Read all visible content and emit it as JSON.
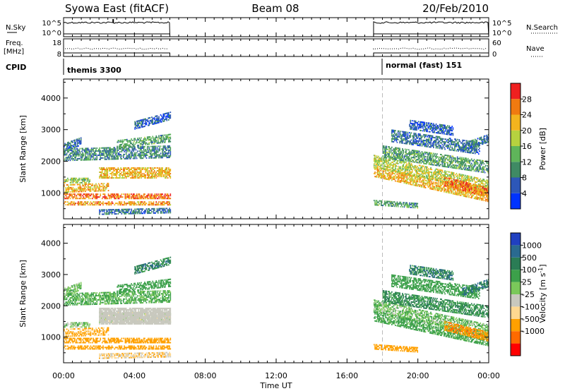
{
  "header": {
    "station": "Syowa East (fitACF)",
    "beam": "Beam 08",
    "date": "20/Feb/2010"
  },
  "colors": {
    "power_scale": [
      "#0033ff",
      "#2d57b8",
      "#3f8a64",
      "#5fb55a",
      "#b6d23f",
      "#f3b41e",
      "#f07a10",
      "#ef2020"
    ],
    "velocity_scale": [
      "#ff0000",
      "#ff6a00",
      "#ffa000",
      "#ffd890",
      "#c8c8be",
      "#7ac85a",
      "#3ca04a",
      "#2a7c55",
      "#2a6a90",
      "#2040c0"
    ]
  },
  "chart_data": [
    {
      "type": "line",
      "name_panel": "N.Sky / N.Search",
      "left_label": "N.Sky",
      "right_label": "N.Search",
      "left_ticks": [
        "10^5",
        "10^0"
      ],
      "right_ticks": [
        "10^5",
        "10^0"
      ],
      "segments": [
        [
          "00:00",
          "06:00"
        ],
        [
          "17:30",
          "24:00"
        ]
      ]
    },
    {
      "type": "line",
      "left_label_line1": "Freq.",
      "left_label_line2": "[MHz]",
      "right_label": "Nave",
      "left_ticks": [
        "18",
        "8"
      ],
      "right_ticks": [
        "60",
        "0"
      ],
      "freq_mhz": 10,
      "nave_approx": 30,
      "segments": [
        [
          "00:00",
          "06:00"
        ],
        [
          "17:30",
          "24:00"
        ]
      ]
    },
    {
      "type": "table",
      "label": "CPID",
      "modes": [
        {
          "name": "themis 3300",
          "start": "00:00",
          "end": "06:00"
        },
        {
          "name": "normal (fast) 151",
          "start": "17:30",
          "end": "24:00"
        }
      ]
    },
    {
      "type": "heatmap",
      "ylabel": "Slant Range [km]",
      "ylim": [
        180,
        4600
      ],
      "yticks": [
        1000,
        2000,
        3000,
        4000
      ],
      "colorbar_label": "Power [dB]",
      "colorbar_ticks": [
        4,
        8,
        12,
        16,
        20,
        24,
        28
      ],
      "clim": [
        0,
        32
      ],
      "data_windows": [
        [
          "00:00",
          "06:00"
        ],
        [
          "17:30",
          "24:00"
        ]
      ]
    },
    {
      "type": "heatmap",
      "ylabel": "Slant Range [km]",
      "ylim": [
        180,
        4600
      ],
      "yticks": [
        1000,
        2000,
        3000,
        4000
      ],
      "colorbar_label": "Velocity",
      "colorbar_unit": "[m s",
      "colorbar_unit_sup": "-1",
      "colorbar_unit_close": "]",
      "colorbar_ticks": [
        1000,
        500,
        100,
        25,
        -25,
        -100,
        -500,
        -1000
      ],
      "data_windows": [
        [
          "00:00",
          "06:00"
        ],
        [
          "17:30",
          "24:00"
        ]
      ]
    }
  ],
  "x_axis": {
    "label": "Time UT",
    "ticks": [
      "00:00",
      "04:00",
      "08:00",
      "12:00",
      "16:00",
      "20:00",
      "00:00"
    ],
    "range_hours": [
      0,
      24
    ]
  }
}
